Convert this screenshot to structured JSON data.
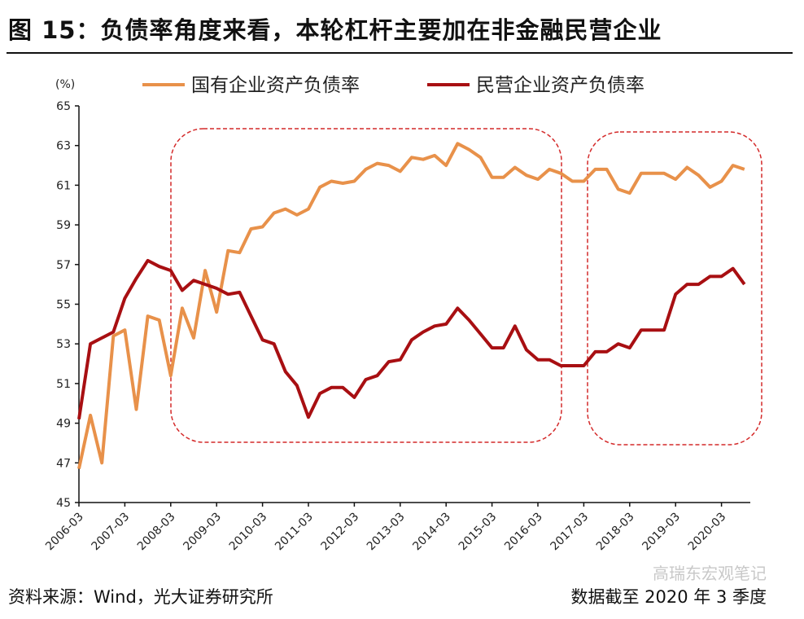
{
  "title": "图 15：负债率角度来看，本轮杠杆主要加在非金融民营企业",
  "footer": {
    "source": "资料来源：Wind，光大证券研究所",
    "note": "数据截至 2020 年 3 季度",
    "watermark": "高瑞东宏观笔记"
  },
  "chart_data": {
    "type": "line",
    "ylabel": "(%)",
    "ylim": [
      45,
      65
    ],
    "yticks": [
      45,
      47,
      49,
      51,
      53,
      55,
      57,
      59,
      61,
      63,
      65
    ],
    "xtick_labels": [
      "2006-03",
      "2007-03",
      "2008-03",
      "2009-03",
      "2010-03",
      "2011-03",
      "2012-03",
      "2013-03",
      "2014-03",
      "2015-03",
      "2016-03",
      "2017-03",
      "2018-03",
      "2019-03",
      "2020-03"
    ],
    "x_frequency": "quarterly",
    "x_start": "2006-03",
    "x_end": "2020-09",
    "grid": false,
    "legend_position": "top",
    "series": [
      {
        "name": "国有企业资产负债率",
        "color": "#E8914A",
        "values": [
          46.7,
          49.4,
          47.0,
          53.4,
          53.7,
          49.7,
          54.4,
          54.2,
          51.4,
          54.8,
          53.3,
          56.7,
          54.6,
          57.7,
          57.6,
          58.8,
          58.9,
          59.6,
          59.8,
          59.5,
          59.8,
          60.9,
          61.2,
          61.1,
          61.2,
          61.8,
          62.1,
          62.0,
          61.7,
          62.4,
          62.3,
          62.5,
          62.0,
          63.1,
          62.8,
          62.4,
          61.4,
          61.4,
          61.9,
          61.5,
          61.3,
          61.8,
          61.6,
          61.2,
          61.2,
          61.8,
          61.8,
          60.8,
          60.6,
          61.6,
          61.6,
          61.6,
          61.3,
          61.9,
          61.5,
          60.9,
          61.2,
          62.0,
          61.8
        ]
      },
      {
        "name": "民营企业资产负债率",
        "color": "#A80F12",
        "values": [
          49.2,
          53.0,
          53.3,
          53.6,
          55.3,
          56.3,
          57.2,
          56.9,
          56.7,
          55.7,
          56.2,
          56.0,
          55.8,
          55.5,
          55.6,
          54.4,
          53.2,
          53.0,
          51.6,
          50.9,
          49.3,
          50.5,
          50.8,
          50.8,
          50.3,
          51.2,
          51.4,
          52.1,
          52.2,
          53.2,
          53.6,
          53.9,
          54.0,
          54.8,
          54.2,
          53.5,
          52.8,
          52.8,
          53.9,
          52.7,
          52.2,
          52.2,
          51.9,
          51.9,
          51.9,
          52.6,
          52.6,
          53.0,
          52.8,
          53.7,
          53.7,
          53.7,
          55.5,
          56.0,
          56.0,
          56.4,
          56.4,
          56.8,
          56.0
        ]
      }
    ],
    "annotations": [
      {
        "type": "dashed-box",
        "from": "2008-03",
        "to": "2016-12",
        "color": "#D42A2A"
      },
      {
        "type": "dashed-box",
        "from": "2017-06",
        "to": "2020-12",
        "color": "#D42A2A"
      }
    ]
  }
}
